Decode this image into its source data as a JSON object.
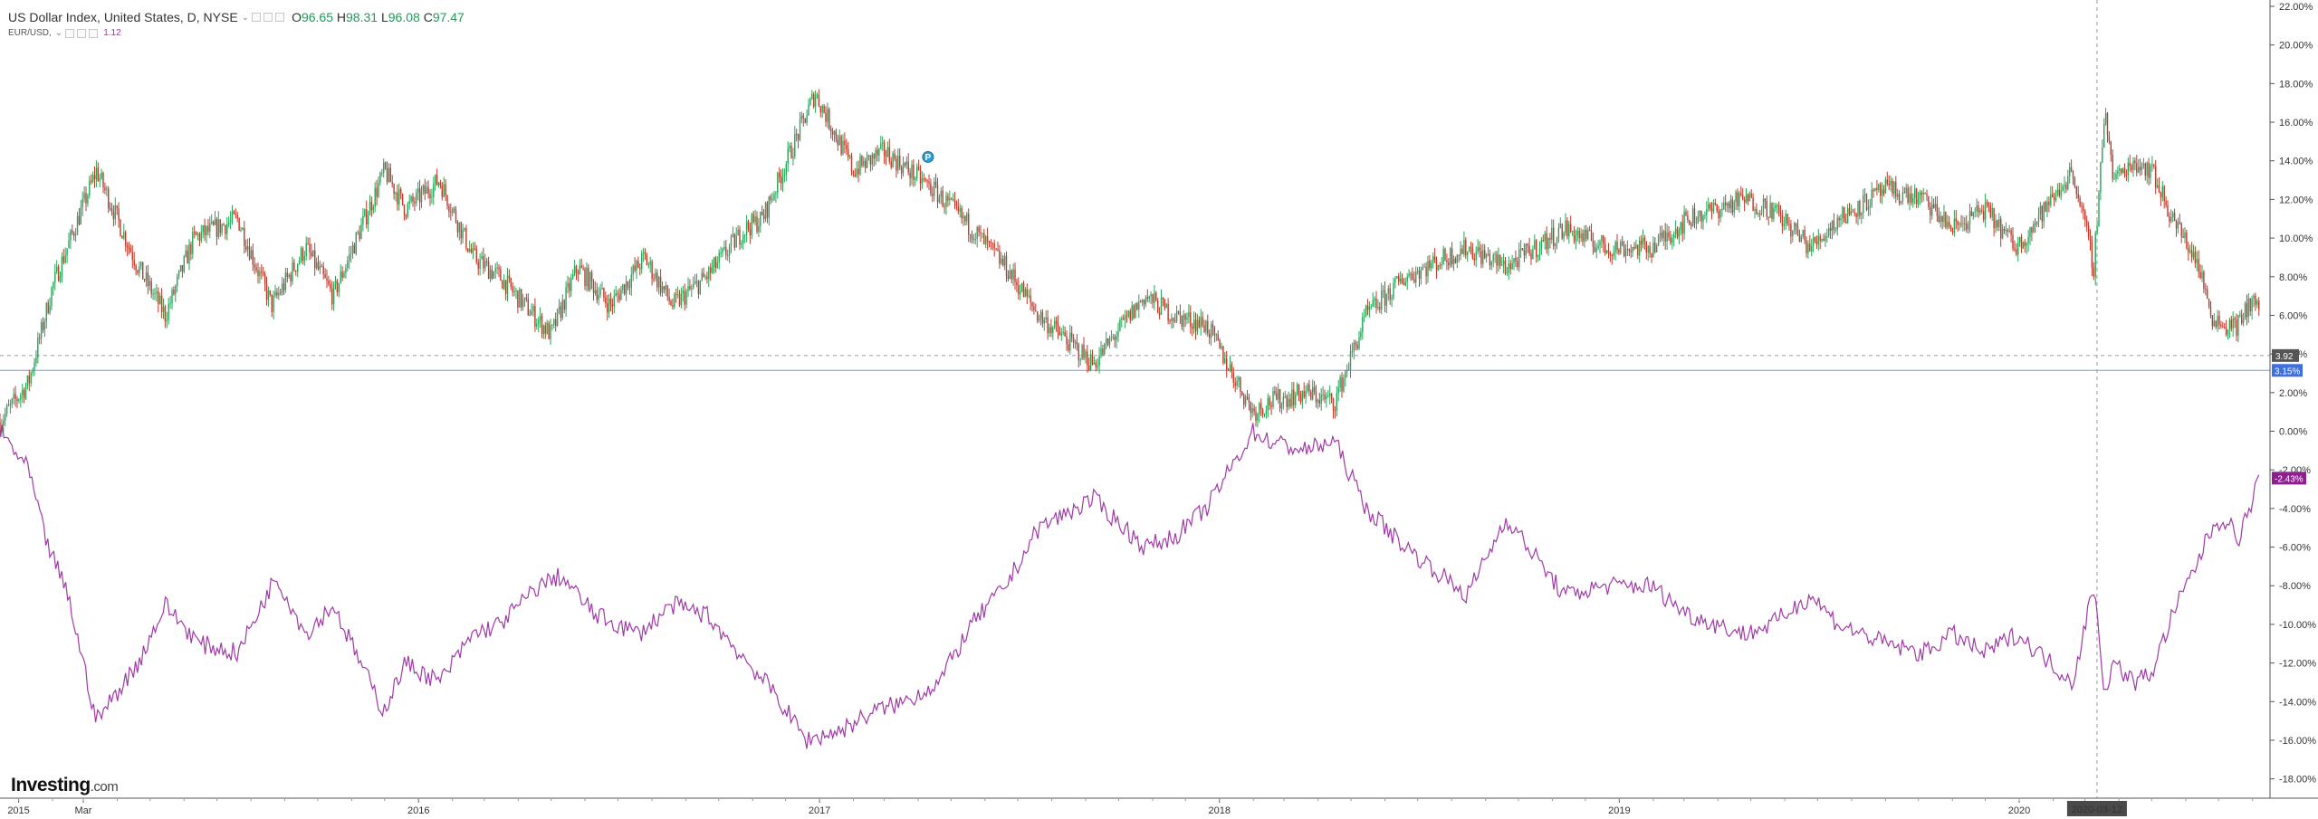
{
  "header": {
    "main_series": {
      "title": "US Dollar Index, United States, D, NYSE",
      "open_label": "O",
      "open": "96.65",
      "high_label": "H",
      "high": "98.31",
      "low_label": "L",
      "low": "96.08",
      "close_label": "C",
      "close": "97.47"
    },
    "compare_series": {
      "title": "EUR/USD,",
      "value": "1.12"
    }
  },
  "branding": {
    "logo_main": "Investing",
    "logo_suffix": ".com"
  },
  "colors": {
    "up": "#26a65b",
    "down": "#c0392b",
    "eurusd_line": "#a03aa7",
    "last_price_line": "#3d6fe0",
    "crosshair": "#9a9a9a",
    "marker": "#2a9fd6"
  },
  "crosshair": {
    "date_label": "2020-03-12",
    "date": "2020-03-12"
  },
  "chart_data": {
    "type": "line",
    "ylabel": "",
    "y_unit": "%",
    "ylim": [
      -19,
      22
    ],
    "y_ticks": [
      22,
      20,
      18,
      16,
      14,
      12,
      10,
      8,
      6,
      4,
      2,
      0,
      -2,
      -4,
      -6,
      -8,
      -10,
      -12,
      -14,
      -16,
      -18
    ],
    "y_tick_labels": [
      "22.00%",
      "20.00%",
      "18.00%",
      "16.00%",
      "14.00%",
      "12.00%",
      "10.00%",
      "8.00%",
      "6.00%",
      "4.00%",
      "2.00%",
      "0.00%",
      "-2.00%",
      "-4.00%",
      "-6.00%",
      "-8.00%",
      "-10.00%",
      "-12.00%",
      "-14.00%",
      "-16.00%",
      "-18.00%"
    ],
    "x_range": [
      "2014-12-15",
      "2020-08-07"
    ],
    "x_ticks": [
      {
        "date": "2015-01-01",
        "label": "2015"
      },
      {
        "date": "2015-03-01",
        "label": "Mar"
      },
      {
        "date": "2016-01-01",
        "label": "2016"
      },
      {
        "date": "2017-01-01",
        "label": "2017"
      },
      {
        "date": "2018-01-01",
        "label": "2018"
      },
      {
        "date": "2019-01-01",
        "label": "2019"
      },
      {
        "date": "2020-01-01",
        "label": "2020"
      }
    ],
    "grid": false,
    "series": [
      {
        "name": "US Dollar Index",
        "style": "candlestick",
        "points": [
          [
            "2014-12-15",
            0.5
          ],
          [
            "2015-01-10",
            2.5
          ],
          [
            "2015-02-01",
            7.5
          ],
          [
            "2015-03-13",
            13.5
          ],
          [
            "2015-04-20",
            8.5
          ],
          [
            "2015-05-15",
            6.0
          ],
          [
            "2015-06-10",
            10.0
          ],
          [
            "2015-07-20",
            11.0
          ],
          [
            "2015-08-20",
            6.5
          ],
          [
            "2015-09-20",
            9.5
          ],
          [
            "2015-10-15",
            7.0
          ],
          [
            "2015-12-01",
            13.5
          ],
          [
            "2015-12-20",
            11.5
          ],
          [
            "2016-01-20",
            13.0
          ],
          [
            "2016-02-20",
            9.0
          ],
          [
            "2016-03-15",
            8.0
          ],
          [
            "2016-05-01",
            5.0
          ],
          [
            "2016-05-25",
            8.5
          ],
          [
            "2016-06-24",
            6.5
          ],
          [
            "2016-07-25",
            9.0
          ],
          [
            "2016-08-20",
            6.5
          ],
          [
            "2016-09-20",
            8.0
          ],
          [
            "2016-10-25",
            10.5
          ],
          [
            "2016-11-10",
            11.0
          ],
          [
            "2016-12-28",
            17.5
          ],
          [
            "2017-02-01",
            13.5
          ],
          [
            "2017-03-01",
            14.5
          ],
          [
            "2017-04-15",
            12.5
          ],
          [
            "2017-05-20",
            10.5
          ],
          [
            "2017-06-20",
            8.5
          ],
          [
            "2017-07-20",
            6.0
          ],
          [
            "2017-09-08",
            3.5
          ],
          [
            "2017-10-25",
            7.0
          ],
          [
            "2017-11-20",
            6.0
          ],
          [
            "2017-12-20",
            5.5
          ],
          [
            "2018-02-01",
            1.0
          ],
          [
            "2018-02-15",
            1.5
          ],
          [
            "2018-03-20",
            2.0
          ],
          [
            "2018-04-16",
            1.5
          ],
          [
            "2018-05-15",
            6.0
          ],
          [
            "2018-06-20",
            8.0
          ],
          [
            "2018-08-15",
            9.5
          ],
          [
            "2018-09-20",
            8.5
          ],
          [
            "2018-11-12",
            10.5
          ],
          [
            "2018-12-20",
            9.5
          ],
          [
            "2019-01-30",
            9.5
          ],
          [
            "2019-03-05",
            11.0
          ],
          [
            "2019-04-25",
            12.0
          ],
          [
            "2019-05-20",
            11.5
          ],
          [
            "2019-06-25",
            9.5
          ],
          [
            "2019-07-20",
            11.0
          ],
          [
            "2019-09-01",
            12.5
          ],
          [
            "2019-10-05",
            12.0
          ],
          [
            "2019-11-01",
            10.5
          ],
          [
            "2019-11-30",
            11.5
          ],
          [
            "2019-12-30",
            9.5
          ],
          [
            "2020-02-19",
            13.5
          ],
          [
            "2020-03-09",
            8.5
          ],
          [
            "2020-03-19",
            16.8
          ],
          [
            "2020-03-27",
            13.0
          ],
          [
            "2020-04-15",
            14.0
          ],
          [
            "2020-05-01",
            13.5
          ],
          [
            "2020-05-20",
            11.0
          ],
          [
            "2020-06-10",
            9.0
          ],
          [
            "2020-06-25",
            6.0
          ],
          [
            "2020-07-05",
            5.5
          ],
          [
            "2020-07-20",
            5.5
          ],
          [
            "2020-08-01",
            7.0
          ],
          [
            "2020-08-07",
            6.0
          ]
        ]
      },
      {
        "name": "EUR/USD",
        "style": "line",
        "points": [
          [
            "2014-12-15",
            0.0
          ],
          [
            "2015-01-10",
            -2.0
          ],
          [
            "2015-01-25",
            -5.5
          ],
          [
            "2015-02-15",
            -8.5
          ],
          [
            "2015-03-13",
            -15.0
          ],
          [
            "2015-04-20",
            -12.0
          ],
          [
            "2015-05-15",
            -9.0
          ],
          [
            "2015-06-15",
            -11.0
          ],
          [
            "2015-07-20",
            -11.5
          ],
          [
            "2015-08-24",
            -7.5
          ],
          [
            "2015-09-20",
            -10.5
          ],
          [
            "2015-10-15",
            -9.0
          ],
          [
            "2015-11-30",
            -14.5
          ],
          [
            "2015-12-20",
            -12.0
          ],
          [
            "2016-01-20",
            -13.0
          ],
          [
            "2016-02-20",
            -10.5
          ],
          [
            "2016-03-15",
            -10.0
          ],
          [
            "2016-04-20",
            -8.0
          ],
          [
            "2016-05-10",
            -7.5
          ],
          [
            "2016-06-10",
            -9.5
          ],
          [
            "2016-07-20",
            -10.5
          ],
          [
            "2016-08-20",
            -9.0
          ],
          [
            "2016-09-20",
            -9.5
          ],
          [
            "2016-10-20",
            -11.5
          ],
          [
            "2016-11-20",
            -13.5
          ],
          [
            "2016-12-20",
            -16.0
          ],
          [
            "2017-01-20",
            -15.5
          ],
          [
            "2017-02-20",
            -14.5
          ],
          [
            "2017-03-20",
            -14.0
          ],
          [
            "2017-04-20",
            -13.0
          ],
          [
            "2017-05-20",
            -10.0
          ],
          [
            "2017-06-20",
            -8.0
          ],
          [
            "2017-07-20",
            -5.0
          ],
          [
            "2017-09-08",
            -3.5
          ],
          [
            "2017-10-25",
            -6.0
          ],
          [
            "2017-11-20",
            -5.5
          ],
          [
            "2017-12-20",
            -4.0
          ],
          [
            "2018-02-01",
            0.0
          ],
          [
            "2018-02-15",
            -0.5
          ],
          [
            "2018-03-20",
            -1.0
          ],
          [
            "2018-04-16",
            -0.5
          ],
          [
            "2018-05-15",
            -4.0
          ],
          [
            "2018-06-20",
            -6.0
          ],
          [
            "2018-08-15",
            -8.5
          ],
          [
            "2018-09-20",
            -4.5
          ],
          [
            "2018-11-12",
            -8.5
          ],
          [
            "2018-12-20",
            -8.0
          ],
          [
            "2019-01-30",
            -8.0
          ],
          [
            "2019-03-05",
            -9.5
          ],
          [
            "2019-04-25",
            -10.5
          ],
          [
            "2019-05-20",
            -10.0
          ],
          [
            "2019-06-25",
            -8.5
          ],
          [
            "2019-07-20",
            -10.0
          ],
          [
            "2019-09-01",
            -11.0
          ],
          [
            "2019-10-05",
            -11.5
          ],
          [
            "2019-11-01",
            -10.5
          ],
          [
            "2019-11-30",
            -11.5
          ],
          [
            "2019-12-30",
            -10.5
          ],
          [
            "2020-02-19",
            -13.0
          ],
          [
            "2020-03-09",
            -8.0
          ],
          [
            "2020-03-19",
            -13.5
          ],
          [
            "2020-03-27",
            -12.0
          ],
          [
            "2020-04-15",
            -13.0
          ],
          [
            "2020-05-01",
            -12.5
          ],
          [
            "2020-05-20",
            -9.5
          ],
          [
            "2020-06-10",
            -7.0
          ],
          [
            "2020-06-25",
            -5.0
          ],
          [
            "2020-07-05",
            -4.5
          ],
          [
            "2020-07-20",
            -5.5
          ],
          [
            "2020-08-01",
            -3.5
          ],
          [
            "2020-08-07",
            -2.43
          ]
        ]
      }
    ],
    "reference_lines": [
      {
        "kind": "dashed",
        "value": 3.92,
        "label": "3.92"
      },
      {
        "kind": "last-price",
        "value": 3.15,
        "label": "3.15%"
      }
    ],
    "end_labels": [
      {
        "series": "EUR/USD",
        "value": -2.43,
        "label": "-2.43%"
      }
    ],
    "markers": [
      {
        "date": "2017-04-10",
        "value": 14.2,
        "label": "P"
      }
    ]
  }
}
